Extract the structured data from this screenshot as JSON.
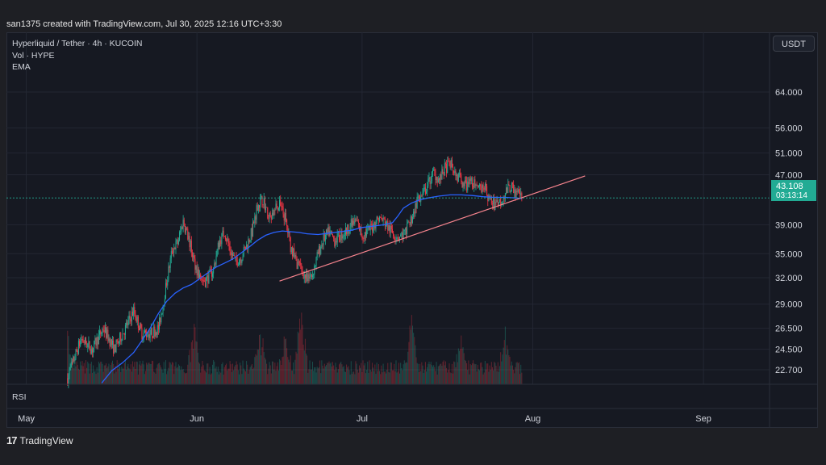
{
  "header": "san1375 created with TradingView.com, Jul 30, 2025 12:16 UTC+3:30",
  "legend": {
    "symbol": "Hyperliquid / Tether · 4h · KUCOIN",
    "volume": "Vol · HYPE",
    "ema": "EMA",
    "rsi": "RSI"
  },
  "currency_button": "USDT",
  "price_tag": {
    "price": "43.108",
    "countdown": "03:13:14"
  },
  "footer": {
    "brand": "TradingView"
  },
  "colors": {
    "up": "#22ab94",
    "down": "#f23645",
    "ema": "#2962ff",
    "trendline": "#f7848e",
    "bg": "#161922",
    "grid": "#232733"
  },
  "chart_data": {
    "type": "candlestick",
    "title": "Hyperliquid / Tether · 4h · KUCOIN",
    "y_scale": "log",
    "ylim": [
      21.5,
      80
    ],
    "y_ticks": [
      "64.000",
      "56.000",
      "51.000",
      "47.000",
      "39.000",
      "35.000",
      "32.000",
      "29.000",
      "26.500",
      "24.500",
      "22.700"
    ],
    "y_tick_values": [
      64,
      56,
      51,
      47,
      39,
      35,
      32,
      29,
      26.5,
      24.5,
      22.7
    ],
    "x_ticks": [
      "May",
      "Jun",
      "Jul",
      "Aug",
      "Sep"
    ],
    "x_tick_days": [
      0,
      31,
      61,
      92,
      123
    ],
    "x_range_days": [
      -3.6,
      135
    ],
    "close_anchors": [
      [
        7.5,
        22
      ],
      [
        10,
        25.5
      ],
      [
        12,
        24.5
      ],
      [
        14,
        26.5
      ],
      [
        16,
        24.5
      ],
      [
        18,
        26.5
      ],
      [
        19.5,
        28.3
      ],
      [
        21,
        26
      ],
      [
        22.5,
        26
      ],
      [
        24,
        26.5
      ],
      [
        25,
        29.5
      ],
      [
        26.5,
        35.5
      ],
      [
        27.5,
        36.5
      ],
      [
        28.5,
        39.5
      ],
      [
        29.5,
        37
      ],
      [
        30.5,
        34
      ],
      [
        31.5,
        32
      ],
      [
        32.5,
        31.6
      ],
      [
        34,
        33
      ],
      [
        35,
        36.5
      ],
      [
        36,
        38
      ],
      [
        37,
        35.5
      ],
      [
        38,
        34
      ],
      [
        39,
        34.5
      ],
      [
        40,
        36
      ],
      [
        41,
        38
      ],
      [
        42,
        42
      ],
      [
        43,
        43
      ],
      [
        44,
        40
      ],
      [
        45,
        41
      ],
      [
        46,
        42
      ],
      [
        47,
        40
      ],
      [
        48,
        36
      ],
      [
        49,
        34
      ],
      [
        50,
        33
      ],
      [
        51,
        31.6
      ],
      [
        52,
        32.5
      ],
      [
        53,
        35
      ],
      [
        54,
        37
      ],
      [
        55,
        38
      ],
      [
        56,
        36.8
      ],
      [
        57,
        37.5
      ],
      [
        58,
        38
      ],
      [
        59,
        39
      ],
      [
        60,
        39.5
      ],
      [
        61,
        37.5
      ],
      [
        62,
        38
      ],
      [
        63,
        39
      ],
      [
        64,
        40
      ],
      [
        65,
        39.5
      ],
      [
        66,
        38.3
      ],
      [
        67,
        37.5
      ],
      [
        68,
        37.4
      ],
      [
        69,
        38
      ],
      [
        70,
        40
      ],
      [
        71,
        42.5
      ],
      [
        72,
        43.5
      ],
      [
        73,
        45.5
      ],
      [
        74,
        47.5
      ],
      [
        75,
        46
      ],
      [
        76,
        48
      ],
      [
        77,
        49
      ],
      [
        78,
        47
      ],
      [
        79,
        46
      ],
      [
        80,
        45
      ],
      [
        81,
        46
      ],
      [
        82,
        44
      ],
      [
        83,
        45.5
      ],
      [
        84,
        43
      ],
      [
        85,
        42
      ],
      [
        86,
        42.5
      ],
      [
        87,
        44
      ],
      [
        88,
        45
      ],
      [
        89,
        44
      ],
      [
        90,
        43.1
      ]
    ],
    "ema_anchors": [
      [
        13.7,
        21.6
      ],
      [
        15.5,
        22.6
      ],
      [
        17.5,
        23.3
      ],
      [
        19.5,
        24.2
      ],
      [
        21,
        25.3
      ],
      [
        22.5,
        26.5
      ],
      [
        24,
        28
      ],
      [
        25.5,
        29.3
      ],
      [
        27,
        30.2
      ],
      [
        28.5,
        30.8
      ],
      [
        30,
        31.2
      ],
      [
        31.5,
        31.9
      ],
      [
        33,
        32.6
      ],
      [
        34.5,
        33.3
      ],
      [
        36,
        33.8
      ],
      [
        37.5,
        34.3
      ],
      [
        39,
        35.1
      ],
      [
        40.5,
        35.9
      ],
      [
        42,
        36.8
      ],
      [
        43.5,
        37.5
      ],
      [
        45,
        37.9
      ],
      [
        46.5,
        38.1
      ],
      [
        48,
        38.0
      ],
      [
        49.5,
        37.9
      ],
      [
        51,
        37.7
      ],
      [
        53,
        37.6
      ],
      [
        55,
        37.8
      ],
      [
        57,
        38.0
      ],
      [
        59,
        38.2
      ],
      [
        61,
        38.6
      ],
      [
        63,
        38.8
      ],
      [
        65,
        39.0
      ],
      [
        66.5,
        39.3
      ],
      [
        67.5,
        40.3
      ],
      [
        68.5,
        41.5
      ],
      [
        70,
        42.3
      ],
      [
        71.5,
        42.8
      ],
      [
        73,
        43.1
      ],
      [
        75,
        43.4
      ],
      [
        77,
        43.6
      ],
      [
        79,
        43.6
      ],
      [
        81,
        43.5
      ],
      [
        83,
        43.3
      ],
      [
        85,
        43.2
      ],
      [
        87,
        43.2
      ],
      [
        89,
        43.1
      ],
      [
        90,
        43.0
      ]
    ],
    "trendline": [
      [
        46,
        31.6
      ],
      [
        101.5,
        46.8
      ]
    ],
    "volume_peaks": [
      [
        7,
        1.0
      ],
      [
        30.5,
        0.6
      ],
      [
        42.5,
        0.5
      ],
      [
        47,
        0.45
      ],
      [
        50,
        0.85
      ],
      [
        70,
        0.7
      ],
      [
        79,
        0.45
      ],
      [
        87,
        0.45
      ]
    ],
    "last_price": 43.108
  }
}
